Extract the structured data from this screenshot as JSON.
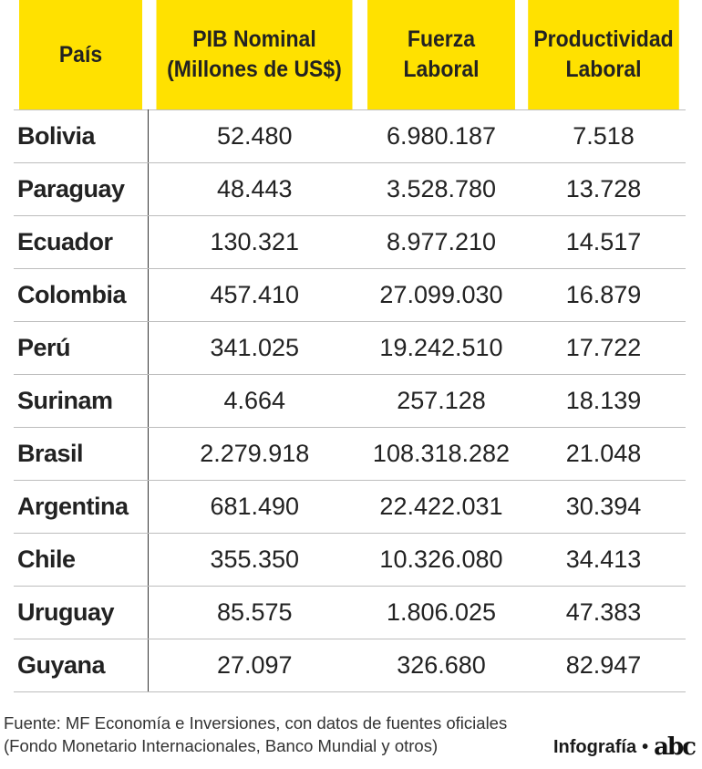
{
  "table": {
    "headers": [
      "País",
      "PIB Nominal\n(Millones de US$)",
      "Fuerza\nLaboral",
      "Productividad\nLaboral"
    ],
    "rows": [
      {
        "country": "Bolivia",
        "pib": "52.480",
        "fuerza": "6.980.187",
        "productividad": "7.518"
      },
      {
        "country": "Paraguay",
        "pib": "48.443",
        "fuerza": "3.528.780",
        "productividad": "13.728"
      },
      {
        "country": "Ecuador",
        "pib": "130.321",
        "fuerza": "8.977.210",
        "productividad": "14.517"
      },
      {
        "country": "Colombia",
        "pib": "457.410",
        "fuerza": "27.099.030",
        "productividad": "16.879"
      },
      {
        "country": "Perú",
        "pib": "341.025",
        "fuerza": "19.242.510",
        "productividad": "17.722"
      },
      {
        "country": "Surinam",
        "pib": "4.664",
        "fuerza": "257.128",
        "productividad": "18.139"
      },
      {
        "country": "Brasil",
        "pib": "2.279.918",
        "fuerza": "108.318.282",
        "productividad": "21.048"
      },
      {
        "country": "Argentina",
        "pib": "681.490",
        "fuerza": "22.422.031",
        "productividad": "30.394"
      },
      {
        "country": "Chile",
        "pib": "355.350",
        "fuerza": "10.326.080",
        "productividad": "34.413"
      },
      {
        "country": "Uruguay",
        "pib": "85.575",
        "fuerza": "1.806.025",
        "productividad": "47.383"
      },
      {
        "country": "Guyana",
        "pib": "27.097",
        "fuerza": "326.680",
        "productividad": "82.947"
      }
    ]
  },
  "footer": {
    "source_line1": "Fuente: MF Economía e Inversiones, con datos de fuentes oficiales",
    "source_line2": "(Fondo Monetario Internacionales, Banco Mundial y otros)",
    "credit_label": "Infografía",
    "credit_separator": "•",
    "brand": "abc"
  },
  "colors": {
    "header_background": "#ffe100",
    "text": "#222222",
    "row_divider": "#bdbdbd"
  }
}
